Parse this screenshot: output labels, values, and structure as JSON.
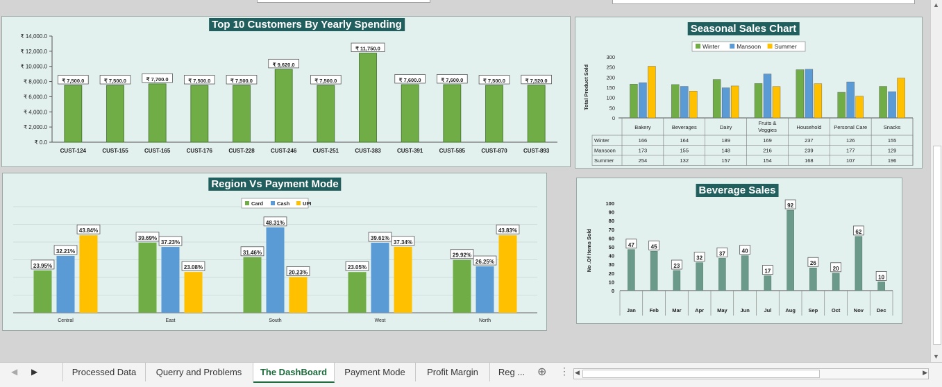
{
  "dashboard": {
    "customers_chart": {
      "title": "Top 10 Customers By Yearly Spending",
      "chart_data": {
        "type": "bar",
        "title": "Top 10 Customers By Yearly Spending",
        "categories": [
          "CUST-124",
          "CUST-155",
          "CUST-165",
          "CUST-176",
          "CUST-228",
          "CUST-246",
          "CUST-251",
          "CUST-383",
          "CUST-391",
          "CUST-585",
          "CUST-870",
          "CUST-893"
        ],
        "values": [
          7500,
          7500,
          7700,
          7500,
          7500,
          9620,
          7500,
          11750,
          7600,
          7600,
          7500,
          7520
        ],
        "value_labels": [
          "₹ 7,500.0",
          "₹ 7,500.0",
          "₹ 7,700.0",
          "₹ 7,500.0",
          "₹ 7,500.0",
          "₹ 9,620.0",
          "₹ 7,500.0",
          "₹ 11,750.0",
          "₹ 7,600.0",
          "₹ 7,600.0",
          "₹ 7,500.0",
          "₹ 7,520.0"
        ],
        "yticks": [
          "₹ 0.0",
          "₹ 2,000.0",
          "₹ 4,000.0",
          "₹ 6,000.0",
          "₹ 8,000.0",
          "₹ 10,000.0",
          "₹ 12,000.0",
          "₹ 14,000.0"
        ],
        "ylim": [
          0,
          14000
        ],
        "grid": false,
        "color": "#70ad47"
      }
    },
    "seasonal_chart": {
      "title": "Seasonal Sales Chart",
      "chart_data": {
        "type": "bar",
        "title": "Seasonal Sales Chart",
        "ylabel": "Total Product Sold",
        "categories": [
          "Bakery",
          "Beverages",
          "Dairy",
          "Fruits & Veggies",
          "Household",
          "Personal Care",
          "Snacks"
        ],
        "category_lines": [
          [
            "Bakery"
          ],
          [
            "Beverages"
          ],
          [
            "Dairy"
          ],
          [
            "Fruits &",
            "Veggies"
          ],
          [
            "Household"
          ],
          [
            "Personal Care"
          ],
          [
            "Snacks"
          ]
        ],
        "series": [
          {
            "name": "Winter",
            "values": [
              166,
              164,
              189,
              169,
              237,
              126,
              155
            ],
            "color": "#70ad47"
          },
          {
            "name": "Mansoon",
            "values": [
              173,
              155,
              148,
              216,
              239,
              177,
              129
            ],
            "color": "#5b9bd5"
          },
          {
            "name": "Summer",
            "values": [
              254,
              132,
              157,
              154,
              168,
              107,
              196
            ],
            "color": "#ffc000"
          }
        ],
        "yticks": [
          "0",
          "50",
          "100",
          "150",
          "200",
          "250",
          "300"
        ],
        "ylim": [
          0,
          300
        ],
        "legend": "top",
        "data_table": true
      }
    },
    "region_chart": {
      "title": "Region Vs Payment Mode",
      "chart_data": {
        "type": "bar",
        "title": "Region Vs Payment Mode",
        "categories": [
          "Central",
          "East",
          "South",
          "West",
          "North"
        ],
        "series": [
          {
            "name": "Card",
            "values": [
              23.95,
              39.69,
              31.46,
              23.05,
              29.92
            ],
            "labels": [
              "23.95%",
              "39.69%",
              "31.46%",
              "23.05%",
              "29.92%"
            ],
            "color": "#70ad47"
          },
          {
            "name": "Cash",
            "values": [
              32.21,
              37.23,
              48.31,
              39.61,
              26.25
            ],
            "labels": [
              "32.21%",
              "37.23%",
              "48.31%",
              "39.61%",
              "26.25%"
            ],
            "color": "#5b9bd5"
          },
          {
            "name": "UPI",
            "values": [
              43.84,
              23.08,
              20.23,
              37.34,
              43.83
            ],
            "labels": [
              "43.84%",
              "23.08%",
              "20.23%",
              "37.34%",
              "43.83%"
            ],
            "color": "#ffc000"
          }
        ],
        "ylim": [
          0,
          60
        ],
        "grid": true,
        "legend": "top"
      }
    },
    "beverage_chart": {
      "title": "Beverage Sales",
      "chart_data": {
        "type": "bar",
        "title": "Beverage Sales",
        "ylabel": "No .Of Items Sold",
        "categories": [
          "Jan",
          "Feb",
          "Mar",
          "Apr",
          "May",
          "Jun",
          "Jul",
          "Aug",
          "Sep",
          "Oct",
          "Nov",
          "Dec"
        ],
        "values": [
          47,
          45,
          23,
          32,
          37,
          40,
          17,
          92,
          26,
          20,
          62,
          10
        ],
        "yticks": [
          "0",
          "10",
          "20",
          "30",
          "40",
          "50",
          "60",
          "70",
          "80",
          "90",
          "100"
        ],
        "ylim": [
          0,
          100
        ],
        "grid": false,
        "color": "#6b9a8a"
      }
    }
  },
  "tabs": {
    "items": [
      "Processed Data",
      "Querry and Problems",
      "The DashBoard",
      "Payment Mode",
      "Profit Margin",
      "Reg ..."
    ],
    "active": "The DashBoard",
    "add_label": "⊕",
    "more_label": "⋮"
  }
}
